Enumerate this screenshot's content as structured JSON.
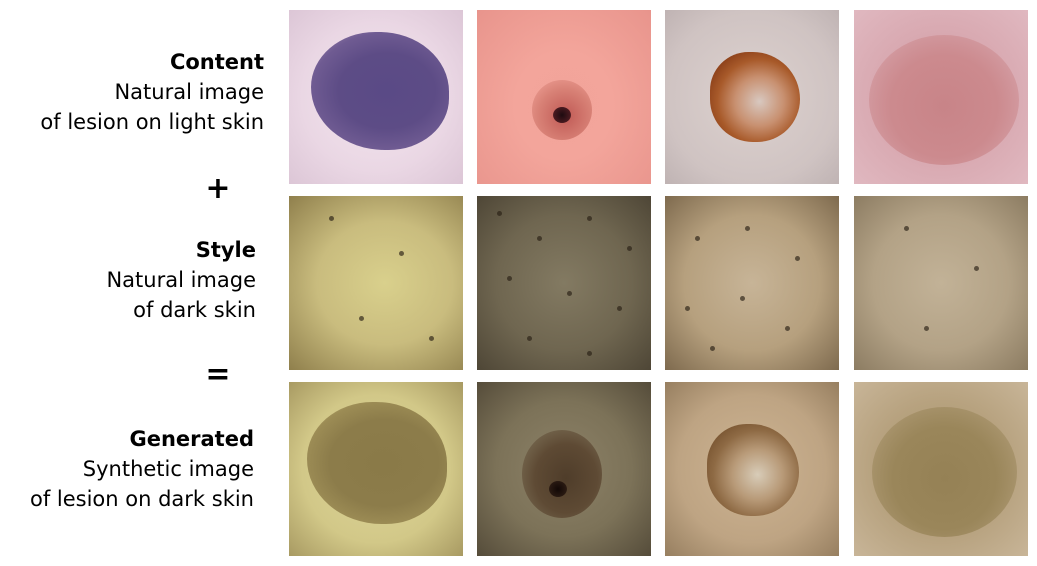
{
  "rows": [
    {
      "title": "Content",
      "line1": "Natural image",
      "line2": "of lesion on light skin"
    },
    {
      "title": "Style",
      "line1": "Natural image",
      "line2": "of dark skin"
    },
    {
      "title": "Generated",
      "line1": "Synthetic image",
      "line2": "of lesion on dark skin"
    }
  ],
  "operators": {
    "plus": "+",
    "equals": "="
  }
}
